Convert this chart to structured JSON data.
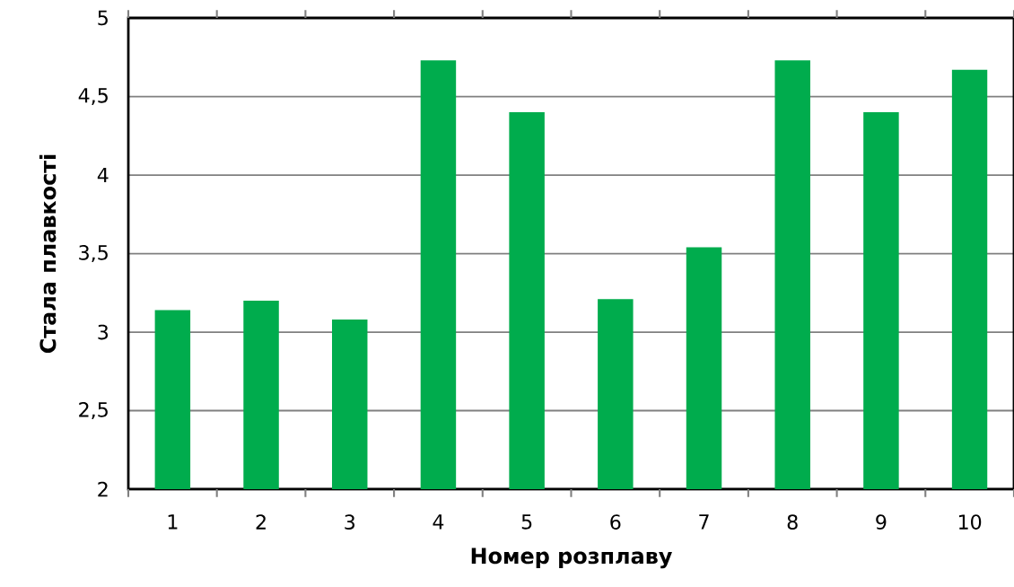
{
  "chart_data": {
    "type": "bar",
    "xlabel": "Номер розплаву",
    "ylabel": "Стала плавкості",
    "categories": [
      "1",
      "2",
      "3",
      "4",
      "5",
      "6",
      "7",
      "8",
      "9",
      "10"
    ],
    "values": [
      3.14,
      3.2,
      3.08,
      4.73,
      4.4,
      3.21,
      3.54,
      4.73,
      4.4,
      4.67
    ],
    "color": "#00ac4d",
    "ylim": [
      2,
      5
    ],
    "yticks": [
      2,
      {
        "value": 2.5,
        "label": "2,5"
      },
      3,
      {
        "value": 3.5,
        "label": "3,5"
      },
      4,
      {
        "value": 4.5,
        "label": "4,5"
      },
      5
    ],
    "grid": "y"
  }
}
